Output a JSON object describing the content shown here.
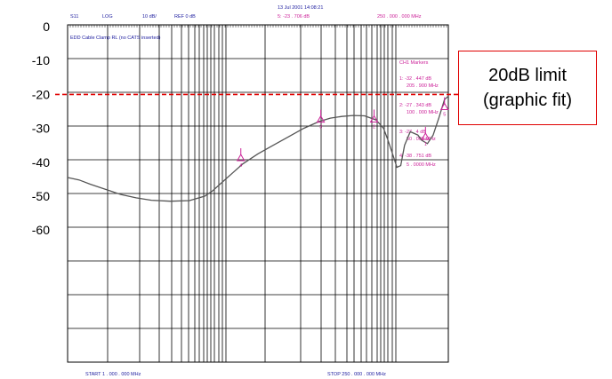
{
  "header": {
    "timestamp": "13 Jul 2001  14:08:21",
    "param": "S11",
    "format": "LOG",
    "scale": "10 dB/",
    "ref": "REF 0 dB",
    "marker_readout": [
      "5: -23 . 706  dB",
      "250 . 000 . 000  MHz"
    ],
    "title": "EDD Cable Clamp RL (no CATS inserted)",
    "start": "START    1 . 000 . 000  MHz",
    "stop": "STOP   250 . 000 . 000  MHz"
  },
  "markers_panel": {
    "title": "CH1  Markers",
    "lines": [
      "1: -32 . 447  dB",
      "205 . 900   MHz",
      "2: -27 . 343  dB",
      "100 . 000   MHz",
      "3: -27 . 4   dB",
      "50 . 000   MHz",
      "4: -38 . 751  dB",
      "5 . 0000   MHz"
    ]
  },
  "annotation": {
    "line1": "20dB limit",
    "line2": "(graphic fit)",
    "color": "#e00000"
  },
  "chart_data": {
    "type": "line",
    "title": "EDD Cable Clamp RL (no CATS inserted)",
    "xlabel": "",
    "ylabel": "",
    "y_ticks": [
      0,
      -10,
      -20,
      -30,
      -40,
      -50,
      -60
    ],
    "ylim": [
      -90,
      0
    ],
    "grid": true,
    "limit_line": {
      "value": -20,
      "style": "dashed",
      "color": "#e00000",
      "label": "20dB limit (graphic fit)"
    },
    "trace_color": "#555555",
    "marker_color": "#cc2299",
    "series": [
      {
        "x": [
          0.0,
          0.03,
          0.06,
          0.1,
          0.14,
          0.18,
          0.22,
          0.27,
          0.32,
          0.36,
          0.38,
          0.4,
          0.43,
          0.46,
          0.5,
          0.54,
          0.58,
          0.62,
          0.66,
          0.69,
          0.72,
          0.75,
          0.78,
          0.81,
          0.83,
          0.84,
          0.855,
          0.865,
          0.875,
          0.885,
          0.9,
          0.92,
          0.93,
          0.945,
          0.96,
          0.975,
          0.99,
          1.0
        ],
        "values": [
          -44.5,
          -45.2,
          -46.5,
          -48.0,
          -49.5,
          -50.5,
          -51.2,
          -51.5,
          -51.3,
          -50.0,
          -48.5,
          -46.5,
          -43.5,
          -40.5,
          -37.5,
          -35.0,
          -32.5,
          -30.0,
          -28.0,
          -27.0,
          -26.5,
          -26.2,
          -26.3,
          -27.5,
          -30.0,
          -33.0,
          -38.0,
          -41.5,
          -41.0,
          -35.0,
          -31.0,
          -32.0,
          -33.5,
          -34.5,
          -32.0,
          -27.0,
          -21.5,
          -20.5
        ]
      }
    ],
    "marker_points": [
      {
        "label": "4",
        "x": 0.455,
        "y": -38.751
      },
      {
        "label": "3",
        "x": 0.665,
        "y": -27.4
      },
      {
        "label": "2",
        "x": 0.805,
        "y": -27.343
      },
      {
        "label": "1",
        "x": 0.94,
        "y": -32.447
      },
      {
        "label": "5",
        "x": 0.99,
        "y": -23.706
      }
    ]
  }
}
